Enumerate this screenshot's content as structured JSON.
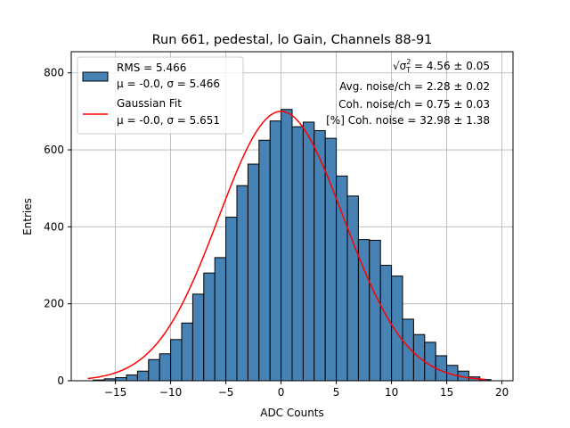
{
  "chart_data": {
    "type": "bar",
    "title": "Run 661, pedestal, lo Gain, Channels 88-91",
    "xlabel": "ADC Counts",
    "ylabel": "Entries",
    "xlim": [
      -19,
      21
    ],
    "ylim": [
      0,
      855
    ],
    "xticks": [
      -15,
      -10,
      -5,
      0,
      5,
      10,
      15,
      20
    ],
    "xtick_labels": [
      "−15",
      "−10",
      "−5",
      "0",
      "5",
      "10",
      "15",
      "20"
    ],
    "yticks": [
      0,
      200,
      400,
      600,
      800
    ],
    "ytick_labels": [
      "0",
      "200",
      "400",
      "600",
      "800"
    ],
    "grid": true,
    "legend_position": "top-left",
    "bin_width": 1,
    "bin_starts": [
      -17,
      -16,
      -15,
      -14,
      -13,
      -12,
      -11,
      -10,
      -9,
      -8,
      -7,
      -6,
      -5,
      -4,
      -3,
      -2,
      -1,
      0,
      1,
      2,
      3,
      4,
      5,
      6,
      7,
      8,
      9,
      10,
      11,
      12,
      13,
      14,
      15,
      16,
      17,
      18
    ],
    "values": [
      2,
      5,
      8,
      15,
      25,
      55,
      70,
      107,
      150,
      225,
      280,
      320,
      425,
      507,
      563,
      625,
      675,
      705,
      660,
      672,
      650,
      630,
      532,
      480,
      367,
      365,
      300,
      272,
      160,
      120,
      100,
      65,
      40,
      25,
      10,
      3
    ],
    "series": [
      {
        "name": "RMS = 5.466",
        "name_line2": "μ = -0.0, σ = 5.466",
        "type": "histogram",
        "color": "#4682b4",
        "edge_color": "#000000"
      },
      {
        "name": "Gaussian Fit",
        "name_line2": "μ = -0.0, σ = 5.651",
        "type": "line",
        "color": "#ff0000",
        "mu": 0.0,
        "sigma": 5.651,
        "amplitude": 700,
        "x_range": [
          -17.5,
          18.5
        ]
      }
    ],
    "annotations": [
      {
        "prefix": "√",
        "symbol": "σ",
        "sup": "2",
        "sub": "T",
        "rest": " = 4.56 ± 0.05"
      },
      {
        "text": "Avg. noise/ch = 2.28 ± 0.02"
      },
      {
        "text": "Coh. noise/ch = 0.75 ± 0.03"
      },
      {
        "text": "[%] Coh. noise = 32.98 ± 1.38"
      }
    ],
    "colors": {
      "bar_fill": "#4682b4",
      "bar_edge": "#000000",
      "fit_line": "#ff0000",
      "grid": "#b0b0b0",
      "legend_border": "#cccccc"
    }
  }
}
